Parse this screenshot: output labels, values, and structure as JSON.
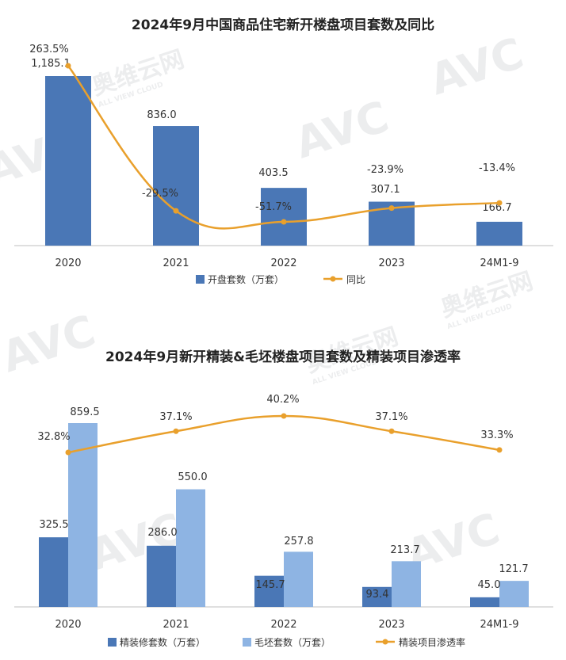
{
  "chart_data": [
    {
      "type": "bar",
      "title": "2024年9月中国商品住宅新开楼盘项目套数及同比",
      "categories": [
        "2020",
        "2021",
        "2022",
        "2023",
        "24M1-9"
      ],
      "series": [
        {
          "name": "开盘套数（万套）",
          "kind": "bar",
          "color": "#4a77b6",
          "values": [
            1185.1,
            836.0,
            403.5,
            307.1,
            166.7
          ],
          "labels": [
            "1,185.1",
            "836.0",
            "403.5",
            "307.1",
            "166.7"
          ]
        },
        {
          "name": "同比",
          "kind": "line",
          "axis": "secondary",
          "color": "#e9a02c",
          "values": [
            263.5,
            -29.5,
            -51.7,
            -23.9,
            -13.4
          ],
          "labels": [
            "263.5%",
            "-29.5%",
            "-51.7%",
            "-23.9%",
            "-13.4%"
          ]
        }
      ],
      "grid": false,
      "legend": "bottom"
    },
    {
      "type": "bar",
      "title": "2024年9月新开精装&毛坯楼盘项目套数及精装项目渗透率",
      "categories": [
        "2020",
        "2021",
        "2022",
        "2023",
        "24M1-9"
      ],
      "series": [
        {
          "name": "精装修套数（万套）",
          "kind": "bar",
          "color": "#4a77b6",
          "values": [
            325.5,
            286.0,
            145.7,
            93.4,
            45.0
          ],
          "labels": [
            "325.5",
            "286.0",
            "145.7",
            "93.4",
            "45.0"
          ]
        },
        {
          "name": "毛坯套数（万套）",
          "kind": "bar",
          "color": "#8eb4e3",
          "values": [
            859.5,
            550.0,
            257.8,
            213.7,
            121.7
          ],
          "labels": [
            "859.5",
            "550.0",
            "257.8",
            "213.7",
            "121.7"
          ]
        },
        {
          "name": "精装项目渗透率",
          "kind": "line",
          "axis": "secondary",
          "color": "#e9a02c",
          "values": [
            32.8,
            37.1,
            40.2,
            37.1,
            33.3
          ],
          "labels": [
            "32.8%",
            "37.1%",
            "40.2%",
            "37.1%",
            "33.3%"
          ]
        }
      ],
      "grid": false,
      "legend": "bottom"
    }
  ],
  "watermark": {
    "brand": "AVC",
    "cn": "奥维云网",
    "en": "ALL VIEW CLOUD"
  }
}
